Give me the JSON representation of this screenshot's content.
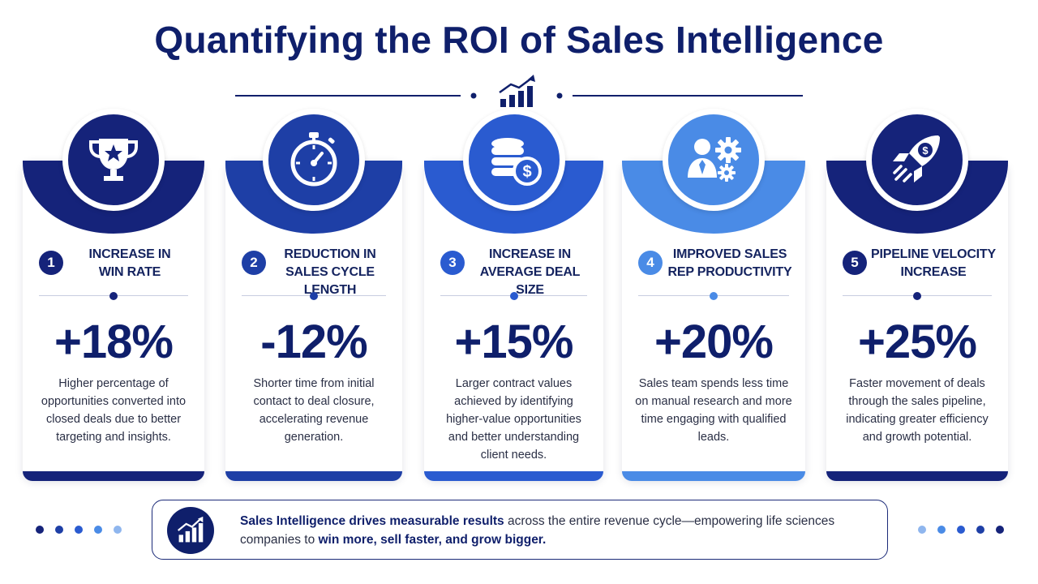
{
  "title": "Quantifying the ROI of Sales Intelligence",
  "cards": [
    {
      "number": "1",
      "label_line1": "INCREASE IN",
      "label_line2": "WIN RATE",
      "value": "+18%",
      "description": "Higher percentage of opportunities converted into closed deals due to better targeting and insights.",
      "icon": "trophy-icon",
      "color": "#15237a"
    },
    {
      "number": "2",
      "label_line1": "REDUCTION IN",
      "label_line2": "SALES CYCLE LENGTH",
      "value": "-12%",
      "description": "Shorter time from initial contact to deal closure, accelerating revenue generation.",
      "icon": "stopwatch-icon",
      "color": "#1e3fa6"
    },
    {
      "number": "3",
      "label_line1": "INCREASE IN",
      "label_line2": "AVERAGE DEAL SIZE",
      "value": "+15%",
      "description": "Larger contract values achieved by identifying higher-value opportunities and better understanding client needs.",
      "icon": "coins-dollar-icon",
      "color": "#2a5bd0"
    },
    {
      "number": "4",
      "label_line1": "IMPROVED SALES",
      "label_line2": "REP PRODUCTIVITY",
      "value": "+20%",
      "description": "Sales team spends less time on manual research and more time engaging with qualified leads.",
      "icon": "person-gears-icon",
      "color": "#4a8be6"
    },
    {
      "number": "5",
      "label_line1": "PIPELINE VELOCITY",
      "label_line2": "INCREASE",
      "value": "+25%",
      "description": "Faster movement of deals through the sales pipeline, indicating greater efficiency and growth potential.",
      "icon": "rocket-dollar-icon",
      "color": "#15237a"
    }
  ],
  "banner": {
    "bold_lead": "Sales Intelligence drives measurable results",
    "text_mid": " across the entire revenue cycle—empowering life sciences companies to ",
    "bold_tail": "win more,  sell faster, and grow bigger."
  },
  "colors": {
    "navy": "#0f1f6b",
    "blue": "#1e3fa6",
    "light_blue": "#4a8be6"
  }
}
